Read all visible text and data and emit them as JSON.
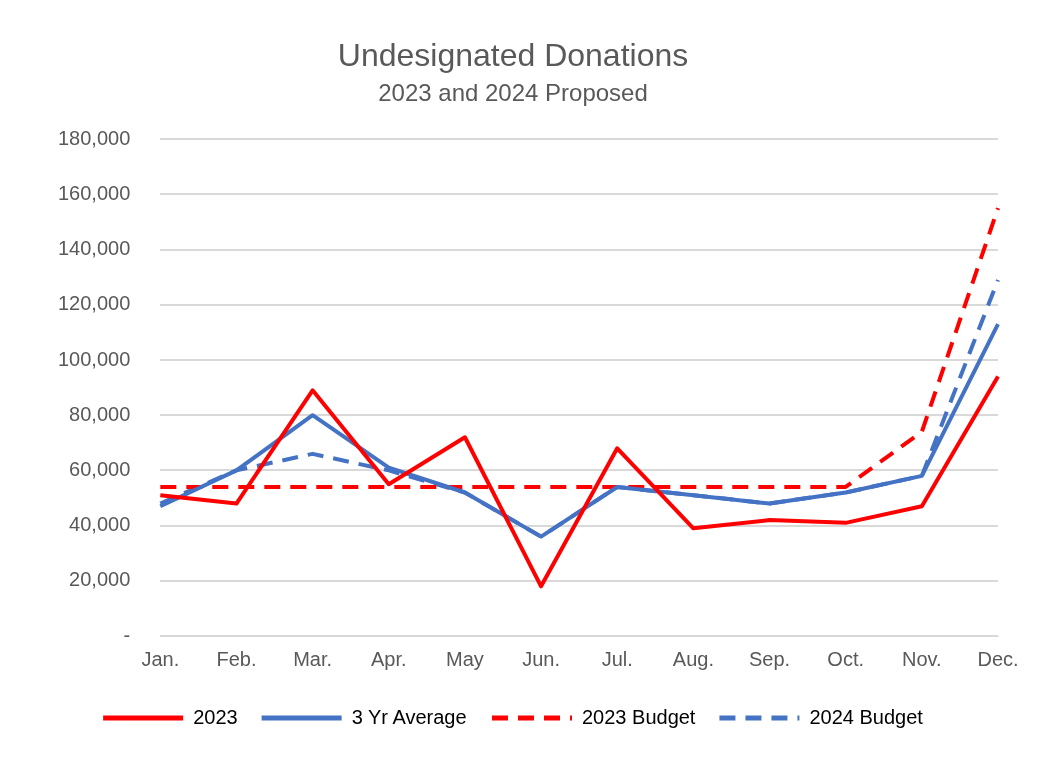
{
  "chart_data": {
    "type": "line",
    "title": "Undesignated Donations",
    "subtitle": "2023 and 2024 Proposed",
    "categories": [
      "Jan.",
      "Feb.",
      "Mar.",
      "Apr.",
      "May",
      "Jun.",
      "Jul.",
      "Aug.",
      "Sep.",
      "Oct.",
      "Nov.",
      "Dec."
    ],
    "series": [
      {
        "name": "2023",
        "color": "#ff0000",
        "line_style": "solid",
        "values": [
          51000,
          48000,
          89000,
          55000,
          72000,
          18000,
          68000,
          39000,
          42000,
          41000,
          47000,
          94000
        ]
      },
      {
        "name": "3 Yr Average",
        "color": "#4472c4",
        "line_style": "solid",
        "values": [
          47000,
          60000,
          80000,
          61000,
          52000,
          36000,
          54000,
          51000,
          48000,
          52000,
          58000,
          113000
        ]
      },
      {
        "name": "2023 Budget",
        "color": "#ff0000",
        "line_style": "dashed",
        "values": [
          54000,
          54000,
          54000,
          54000,
          54000,
          54000,
          54000,
          54000,
          54000,
          54000,
          74000,
          155000
        ]
      },
      {
        "name": "2024 Budget",
        "color": "#4472c4",
        "line_style": "dashed",
        "values": [
          48000,
          60000,
          66000,
          60000,
          52000,
          36000,
          54000,
          51000,
          48000,
          52000,
          58000,
          129000
        ]
      }
    ],
    "ylim": [
      0,
      180000
    ],
    "yticks": [
      {
        "value": 0,
        "label": "-"
      },
      {
        "value": 20000,
        "label": "20,000"
      },
      {
        "value": 40000,
        "label": "40,000"
      },
      {
        "value": 60000,
        "label": "60,000"
      },
      {
        "value": 80000,
        "label": "80,000"
      },
      {
        "value": 100000,
        "label": "100,000"
      },
      {
        "value": 120000,
        "label": "120,000"
      },
      {
        "value": 140000,
        "label": "140,000"
      },
      {
        "value": 160000,
        "label": "160,000"
      },
      {
        "value": 180000,
        "label": "180,000"
      }
    ],
    "grid": "y",
    "legend": "bottom",
    "marker": "none"
  }
}
